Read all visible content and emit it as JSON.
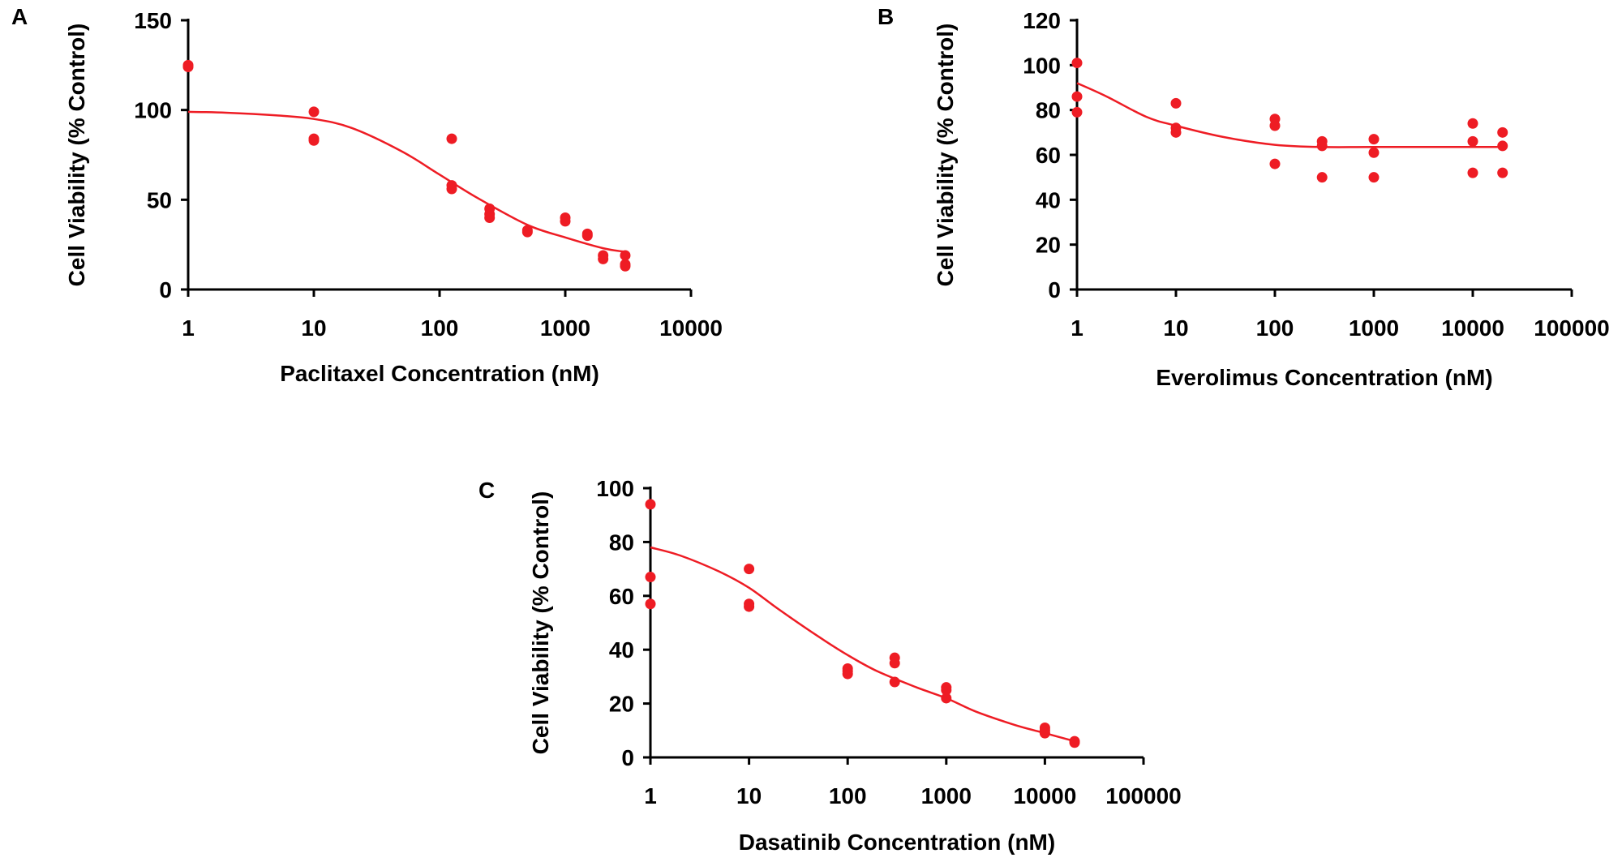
{
  "chart_data": [
    {
      "type": "scatter",
      "panel_label": "A",
      "title": "",
      "xlabel": "Paclitaxel Concentration  (nM)",
      "ylabel": "Cell Viability  (% Control)",
      "xscale": "log",
      "xlim": [
        1,
        10000
      ],
      "ylim": [
        0,
        150
      ],
      "x_ticks": [
        1,
        10,
        100,
        1000,
        10000
      ],
      "x_tick_labels": [
        "1",
        "10",
        "100",
        "1000",
        "10000"
      ],
      "y_ticks": [
        0,
        50,
        100,
        150
      ],
      "y_tick_labels": [
        "0",
        "50",
        "100",
        "150"
      ],
      "grid": false,
      "color": "#ee1c24",
      "points": [
        [
          1,
          125
        ],
        [
          1,
          124
        ],
        [
          10,
          99
        ],
        [
          10,
          84
        ],
        [
          10,
          83
        ],
        [
          125,
          84
        ],
        [
          125,
          58
        ],
        [
          125,
          56
        ],
        [
          250,
          45
        ],
        [
          250,
          42
        ],
        [
          250,
          40
        ],
        [
          500,
          33
        ],
        [
          500,
          32
        ],
        [
          1000,
          40
        ],
        [
          1000,
          38
        ],
        [
          1500,
          31
        ],
        [
          1500,
          30
        ],
        [
          2000,
          19
        ],
        [
          2000,
          17
        ],
        [
          3000,
          19
        ],
        [
          3000,
          14
        ],
        [
          3000,
          13
        ]
      ],
      "fit_curve": [
        [
          1,
          99
        ],
        [
          2,
          98.5
        ],
        [
          5,
          97
        ],
        [
          10,
          95
        ],
        [
          20,
          90
        ],
        [
          50,
          77
        ],
        [
          100,
          64
        ],
        [
          200,
          51
        ],
        [
          500,
          36
        ],
        [
          1000,
          29
        ],
        [
          2000,
          23
        ],
        [
          3000,
          21
        ]
      ]
    },
    {
      "type": "scatter",
      "panel_label": "B",
      "title": "",
      "xlabel": "Everolimus  Concentration  (nM)",
      "ylabel": "Cell Viability  (% Control)",
      "xscale": "log",
      "xlim": [
        1,
        100000
      ],
      "ylim": [
        0,
        120
      ],
      "x_ticks": [
        1,
        10,
        100,
        1000,
        10000,
        100000
      ],
      "x_tick_labels": [
        "1",
        "10",
        "100",
        "1000",
        "10000",
        "100000"
      ],
      "y_ticks": [
        0,
        20,
        40,
        60,
        80,
        100,
        120
      ],
      "y_tick_labels": [
        "0",
        "20",
        "40",
        "60",
        "80",
        "100",
        "120"
      ],
      "grid": false,
      "color": "#ee1c24",
      "points": [
        [
          1,
          101
        ],
        [
          1,
          86
        ],
        [
          1,
          79
        ],
        [
          10,
          83
        ],
        [
          10,
          72
        ],
        [
          10,
          70
        ],
        [
          100,
          76
        ],
        [
          100,
          73
        ],
        [
          100,
          56
        ],
        [
          300,
          66
        ],
        [
          300,
          64
        ],
        [
          300,
          50
        ],
        [
          1000,
          67
        ],
        [
          1000,
          61
        ],
        [
          1000,
          50
        ],
        [
          10000,
          74
        ],
        [
          10000,
          66
        ],
        [
          10000,
          52
        ],
        [
          20000,
          70
        ],
        [
          20000,
          64
        ],
        [
          20000,
          52
        ]
      ],
      "fit_curve": [
        [
          1,
          92
        ],
        [
          2,
          86
        ],
        [
          5,
          77
        ],
        [
          10,
          73
        ],
        [
          30,
          68
        ],
        [
          100,
          64.5
        ],
        [
          300,
          63.5
        ],
        [
          1000,
          63.5
        ],
        [
          10000,
          63.5
        ],
        [
          20000,
          63.5
        ]
      ]
    },
    {
      "type": "scatter",
      "panel_label": "C",
      "title": "",
      "xlabel": "Dasatinib  Concentration  (nM)",
      "ylabel": "Cell Viability  (% Control)",
      "xscale": "log",
      "xlim": [
        1,
        100000
      ],
      "ylim": [
        0,
        100
      ],
      "x_ticks": [
        1,
        10,
        100,
        1000,
        10000,
        100000
      ],
      "x_tick_labels": [
        "1",
        "10",
        "100",
        "1000",
        "10000",
        "100000"
      ],
      "y_ticks": [
        0,
        20,
        40,
        60,
        80,
        100
      ],
      "y_tick_labels": [
        "0",
        "20",
        "40",
        "60",
        "80",
        "100"
      ],
      "grid": false,
      "color": "#ee1c24",
      "points": [
        [
          1,
          94
        ],
        [
          1,
          67
        ],
        [
          1,
          57
        ],
        [
          10,
          70
        ],
        [
          10,
          57
        ],
        [
          10,
          56
        ],
        [
          100,
          33
        ],
        [
          100,
          32
        ],
        [
          100,
          31
        ],
        [
          300,
          37
        ],
        [
          300,
          35
        ],
        [
          300,
          28
        ],
        [
          1000,
          26
        ],
        [
          1000,
          25
        ],
        [
          1000,
          22
        ],
        [
          10000,
          11
        ],
        [
          10000,
          10
        ],
        [
          10000,
          9
        ],
        [
          20000,
          6
        ],
        [
          20000,
          5.5
        ]
      ],
      "fit_curve": [
        [
          1,
          78
        ],
        [
          2,
          75
        ],
        [
          5,
          69
        ],
        [
          10,
          63
        ],
        [
          20,
          55
        ],
        [
          50,
          45
        ],
        [
          100,
          38
        ],
        [
          200,
          32
        ],
        [
          500,
          26
        ],
        [
          1000,
          22
        ],
        [
          2000,
          17
        ],
        [
          5000,
          12
        ],
        [
          10000,
          9
        ],
        [
          20000,
          6
        ]
      ]
    }
  ]
}
